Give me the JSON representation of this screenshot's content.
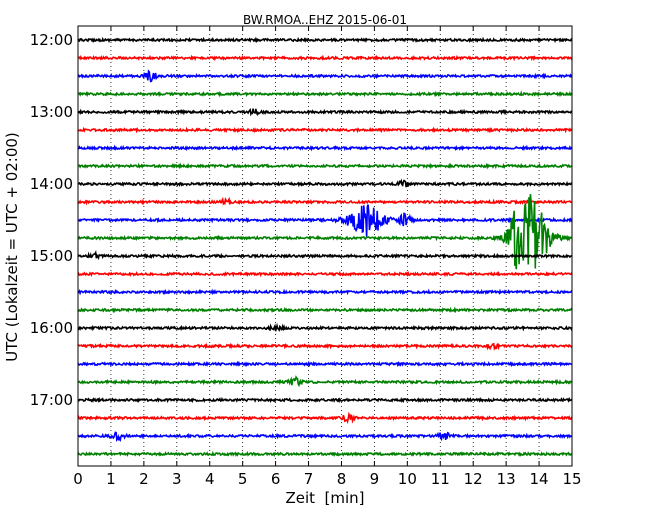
{
  "chart_data": {
    "type": "line",
    "title": "BW.RMOA..EHZ 2015-06-01",
    "xlabel": "Zeit  [min]",
    "ylabel": "UTC (Lokalzeit = UTC + 02:00)",
    "xlim": [
      0,
      15
    ],
    "x_ticks": [
      "0",
      "1",
      "2",
      "3",
      "4",
      "5",
      "6",
      "7",
      "8",
      "9",
      "10",
      "11",
      "12",
      "13",
      "14",
      "15"
    ],
    "y_ticks": [
      "12:00",
      "13:00",
      "14:00",
      "15:00",
      "16:00",
      "17:00"
    ],
    "grid": true,
    "trace_interval_minutes": 15,
    "colors": [
      "#000000",
      "#ff0000",
      "#0000ff",
      "#008000"
    ],
    "traces": [
      {
        "start": "12:00",
        "events": []
      },
      {
        "start": "12:15",
        "events": []
      },
      {
        "start": "12:30",
        "events": [
          {
            "t": 2.2,
            "amp": 0.4
          }
        ]
      },
      {
        "start": "12:45",
        "events": []
      },
      {
        "start": "13:00",
        "events": [
          {
            "t": 5.4,
            "amp": 0.25
          }
        ]
      },
      {
        "start": "13:15",
        "events": []
      },
      {
        "start": "13:30",
        "events": []
      },
      {
        "start": "13:45",
        "events": []
      },
      {
        "start": "14:00",
        "events": [
          {
            "t": 9.9,
            "amp": 0.2
          }
        ]
      },
      {
        "start": "14:15",
        "events": [
          {
            "t": 4.5,
            "amp": 0.2
          }
        ]
      },
      {
        "start": "14:30",
        "events": [
          {
            "t": 8.75,
            "amp": 1.3
          },
          {
            "t": 9.9,
            "amp": 0.55
          }
        ]
      },
      {
        "start": "14:45",
        "events": [
          {
            "t": 13.3,
            "amp": 1.0
          },
          {
            "t": 13.75,
            "amp": 3.6
          }
        ]
      },
      {
        "start": "15:00",
        "events": [
          {
            "t": 0.5,
            "amp": 0.2
          }
        ]
      },
      {
        "start": "15:15",
        "events": []
      },
      {
        "start": "15:30",
        "events": []
      },
      {
        "start": "15:45",
        "events": []
      },
      {
        "start": "16:00",
        "events": [
          {
            "t": 6.0,
            "amp": 0.2
          }
        ]
      },
      {
        "start": "16:15",
        "events": [
          {
            "t": 12.6,
            "amp": 0.15
          }
        ]
      },
      {
        "start": "16:30",
        "events": []
      },
      {
        "start": "16:45",
        "events": [
          {
            "t": 6.6,
            "amp": 0.35
          }
        ]
      },
      {
        "start": "17:00",
        "events": []
      },
      {
        "start": "17:15",
        "events": [
          {
            "t": 8.2,
            "amp": 0.35
          }
        ]
      },
      {
        "start": "17:30",
        "events": [
          {
            "t": 1.2,
            "amp": 0.3
          },
          {
            "t": 11.1,
            "amp": 0.3
          }
        ]
      },
      {
        "start": "17:45",
        "events": []
      }
    ]
  }
}
